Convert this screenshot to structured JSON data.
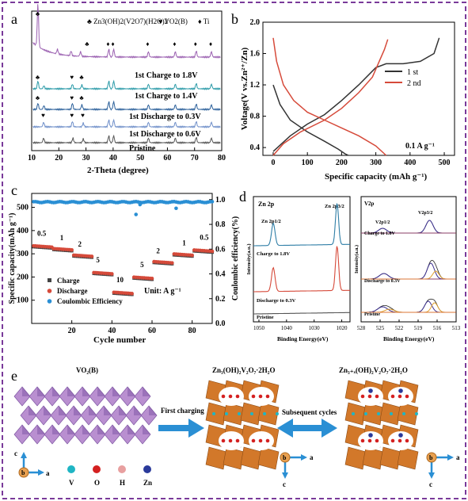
{
  "chart_data": [
    {
      "panel": "a",
      "type": "line",
      "xlabel": "2-Theta (degree)",
      "ylabel": "",
      "xlim": [
        10,
        80
      ],
      "xticks": [
        10,
        20,
        30,
        40,
        50,
        60,
        70,
        80
      ],
      "legend": [
        {
          "symbol": "♣",
          "label": "Zn3(OH)2(V2O7)(H2O)2"
        },
        {
          "symbol": "♥",
          "label": "VO2(B)"
        },
        {
          "symbol": "♦",
          "label": "Ti"
        }
      ],
      "series": [
        {
          "name": "1st Charge to 1.8V",
          "color": "#9a5fb0"
        },
        {
          "name": "1st Charge to 1.4V",
          "color": "#2a9aa8"
        },
        {
          "name": "1st Discharge to 0.3V",
          "color": "#2a5f9a"
        },
        {
          "name": "1st Discharge to 0.6V",
          "color": "#6f8fc9"
        },
        {
          "name": "Pristine",
          "color": "#555555"
        }
      ]
    },
    {
      "panel": "b",
      "type": "line",
      "xlabel": "Specific capacity (mAh g⁻¹)",
      "ylabel": "Voltage(V vs.Zn²⁺/Zn)",
      "xlim": [
        -30,
        530
      ],
      "ylim": [
        0.3,
        2.0
      ],
      "xticks": [
        0,
        100,
        200,
        300,
        400,
        500
      ],
      "yticks": [
        0.4,
        0.8,
        1.2,
        1.6,
        2.0
      ],
      "annotation": "0.1 A g⁻¹",
      "series": [
        {
          "name": "1 st",
          "color": "#333333",
          "discharge": {
            "x": [
              0,
              20,
              50,
              100,
              150,
              190,
              210,
              220
            ],
            "y": [
              1.2,
              0.95,
              0.75,
              0.6,
              0.48,
              0.38,
              0.32,
              0.3
            ]
          },
          "charge": {
            "x": [
              0,
              50,
              100,
              150,
              200,
              250,
              300,
              330,
              380,
              430,
              470,
              485
            ],
            "y": [
              0.35,
              0.55,
              0.7,
              0.82,
              1.0,
              1.2,
              1.42,
              1.47,
              1.47,
              1.5,
              1.6,
              1.8
            ]
          }
        },
        {
          "name": "2 nd",
          "color": "#d64a3a",
          "discharge": {
            "x": [
              0,
              10,
              30,
              60,
              100,
              150,
              200,
              250,
              300,
              330
            ],
            "y": [
              1.8,
              1.5,
              1.2,
              1.0,
              0.85,
              0.75,
              0.65,
              0.55,
              0.42,
              0.3
            ]
          },
          "charge": {
            "x": [
              0,
              30,
              80,
              150,
              200,
              250,
              290,
              310,
              325,
              335
            ],
            "y": [
              0.3,
              0.45,
              0.6,
              0.75,
              0.9,
              1.1,
              1.3,
              1.5,
              1.65,
              1.78
            ]
          }
        }
      ]
    },
    {
      "panel": "c",
      "type": "scatter",
      "xlabel": "Cycle number",
      "ylabel": "Specific capacity(mAh g⁻¹)",
      "y2label": "Coulombic efficiency(%)",
      "xlim": [
        0,
        90
      ],
      "ylim": [
        0,
        560
      ],
      "y2lim": [
        0,
        1.05
      ],
      "xticks": [
        20,
        40,
        60,
        80
      ],
      "yticks": [
        100,
        200,
        300,
        400,
        500
      ],
      "y2ticks": [
        0.0,
        0.2,
        0.4,
        0.6,
        0.8,
        1.0
      ],
      "rate_labels": [
        "0.5",
        "1",
        "2",
        "5",
        "10",
        "5",
        "2",
        "1",
        "0.5"
      ],
      "unit_label": "Unit:  A g⁻¹",
      "legend": [
        "Charge",
        "Discharge",
        "Coulombic Efficiency"
      ],
      "rate_steps": [
        {
          "label": "0.5",
          "cycles": [
            1,
            10
          ],
          "capacity": 330
        },
        {
          "label": "1",
          "cycles": [
            11,
            20
          ],
          "capacity": 318
        },
        {
          "label": "2",
          "cycles": [
            21,
            30
          ],
          "capacity": 290
        },
        {
          "label": "5",
          "cycles": [
            31,
            40
          ],
          "capacity": 215
        },
        {
          "label": "10",
          "cycles": [
            41,
            50
          ],
          "capacity": 130
        },
        {
          "label": "5",
          "cycles": [
            51,
            60
          ],
          "capacity": 195
        },
        {
          "label": "2",
          "cycles": [
            61,
            70
          ],
          "capacity": 262
        },
        {
          "label": "1",
          "cycles": [
            71,
            80
          ],
          "capacity": 295
        },
        {
          "label": "0.5",
          "cycles": [
            81,
            90
          ],
          "capacity": 312
        }
      ],
      "coulombic_efficiency": 0.98,
      "colors": {
        "charge": "#444444",
        "discharge": "#d64a3a",
        "ce": "#2a8fd4"
      }
    },
    {
      "panel": "d",
      "type": "line",
      "subpanels": [
        {
          "title": "Zn 2p",
          "xlabel": "Binding Energy(eV)",
          "ylabel": "Intensity(a.u.)",
          "xticks": [
            1050,
            1040,
            1030,
            1020
          ],
          "peaks": [
            "Zn 2p1/2",
            "Zn 2p3/2"
          ],
          "series": [
            {
              "name": "Charge to 1.8V",
              "color": "#2f7ea6"
            },
            {
              "name": "Discharge to 0.3V",
              "color": "#d64a3a"
            },
            {
              "name": "Pristine",
              "color": "#555555"
            }
          ]
        },
        {
          "title": "V2p",
          "xlabel": "Binding Energy(eV)",
          "ylabel": "Intensity(a.u.)",
          "xticks": [
            528,
            525,
            522,
            519,
            516,
            513
          ],
          "peaks": [
            "V2p1/2",
            "V2p3/2"
          ],
          "series": [
            {
              "name": "Charge to 1.8V"
            },
            {
              "name": "Discharge to 0.3V"
            },
            {
              "name": "Pristine"
            }
          ]
        }
      ]
    }
  ],
  "panel_e": {
    "structures": [
      {
        "title": "VO₂(B)"
      },
      {
        "title": "Zn₃(OH)₂V₂O₇·2H₂O"
      },
      {
        "title": "Zn₃₊ₓ(OH)₂V₂O₇·2H₂O"
      }
    ],
    "arrows": [
      "First charging",
      "Subsequent cycles"
    ],
    "axes_labels": [
      "c",
      "b",
      "a"
    ],
    "atom_legend": [
      "V",
      "O",
      "H",
      "Zn"
    ],
    "atom_colors": {
      "V": "#1fb5c4",
      "O": "#d42020",
      "H": "#e8a0a0",
      "Zn": "#2a3a9a"
    }
  },
  "panel_labels": [
    "a",
    "b",
    "c",
    "d",
    "e"
  ]
}
